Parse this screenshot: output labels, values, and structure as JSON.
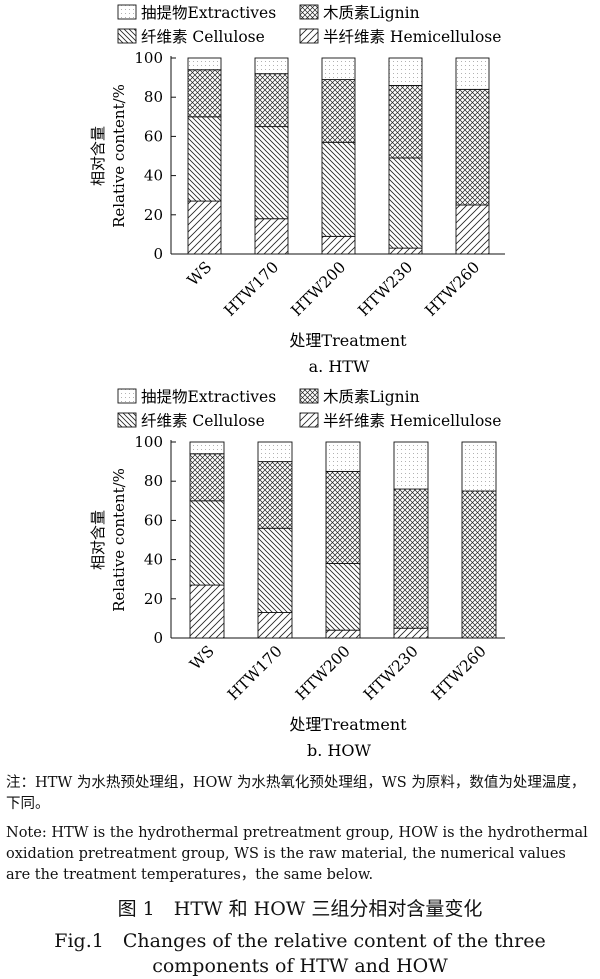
{
  "legend": {
    "extractives": "抽提物Extractives",
    "lignin": "木质素Lignin",
    "cellulose": "纤维素 Cellulose",
    "hemicellulose": "半纤维素 Hemicellulose"
  },
  "axes": {
    "ylabel_cn": "相对含量",
    "ylabel_en": "Relative content/%",
    "xlabel": "处理Treatment"
  },
  "chart_data": [
    {
      "type": "bar",
      "stacked": true,
      "subtitle": "a. HTW",
      "categories": [
        "WS",
        "HTW170",
        "HTW200",
        "HTW230",
        "HTW260"
      ],
      "ylim": [
        0,
        100
      ],
      "yticks": [
        0,
        20,
        40,
        60,
        80,
        100
      ],
      "series": [
        {
          "name": "半纤维素 Hemicellulose",
          "key": "hemicellulose",
          "values": [
            27,
            18,
            9,
            3,
            25
          ]
        },
        {
          "name": "纤维素 Cellulose",
          "key": "cellulose",
          "values": [
            43,
            47,
            48,
            46,
            0
          ]
        },
        {
          "name": "木质素Lignin",
          "key": "lignin",
          "values": [
            24,
            27,
            32,
            37,
            59
          ]
        },
        {
          "name": "抽提物Extractives",
          "key": "extractives",
          "values": [
            6,
            8,
            11,
            14,
            16
          ]
        }
      ]
    },
    {
      "type": "bar",
      "stacked": true,
      "subtitle": "b. HOW",
      "categories": [
        "WS",
        "HTW170",
        "HTW200",
        "HTW230",
        "HTW260"
      ],
      "ylim": [
        0,
        100
      ],
      "yticks": [
        0,
        20,
        40,
        60,
        80,
        100
      ],
      "series": [
        {
          "name": "半纤维素 Hemicellulose",
          "key": "hemicellulose",
          "values": [
            27,
            13,
            4,
            5,
            0
          ]
        },
        {
          "name": "纤维素 Cellulose",
          "key": "cellulose",
          "values": [
            43,
            43,
            34,
            0,
            0
          ]
        },
        {
          "name": "木质素Lignin",
          "key": "lignin",
          "values": [
            24,
            34,
            47,
            71,
            75
          ]
        },
        {
          "name": "抽提物Extractives",
          "key": "extractives",
          "values": [
            6,
            10,
            15,
            24,
            25
          ]
        }
      ]
    }
  ],
  "note": {
    "cn": "注：HTW 为水热预处理组，HOW 为水热氧化预处理组，WS 为原料，数值为处理温度，下同。",
    "en": "Note: HTW is the hydrothermal pretreatment group, HOW is the hydrothermal oxidation pretreatment group, WS is the raw material, the numerical values are the treatment temperatures，the same below."
  },
  "caption": {
    "cn": "图 1　HTW 和 HOW 三组分相对含量变化",
    "en": "Fig.1　Changes of the relative content of the three components of HTW and HOW"
  }
}
